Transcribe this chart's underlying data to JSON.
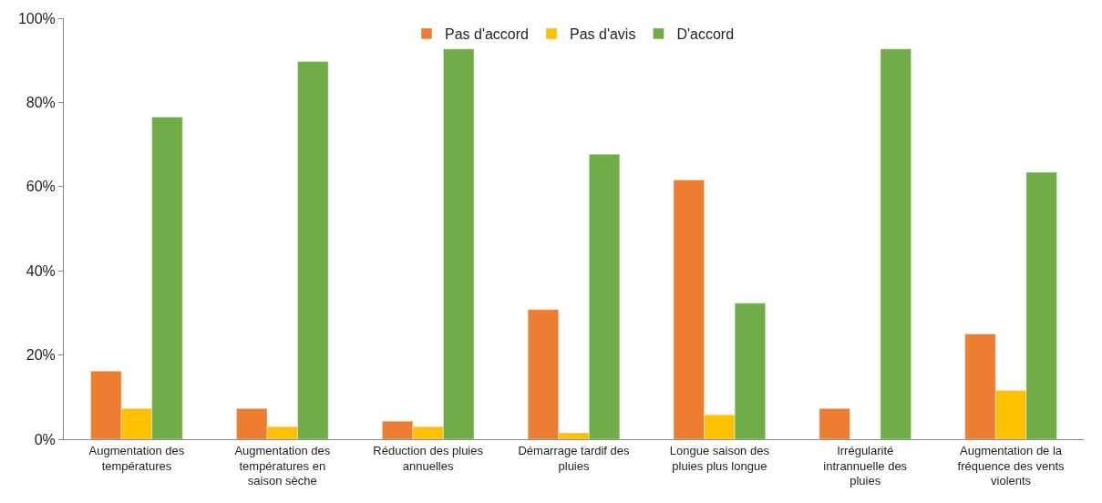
{
  "chart_data": {
    "type": "bar",
    "categories": [
      "Augmentation des températures",
      "Augmentation des températures en saison sèche",
      "Réduction des pluies annuelles",
      "Démarrage tardif des pluies",
      "Longue saison des pluies plus longue",
      "Irrégularité intrannuelle des pluies",
      "Augmentation de la fréquence des vents violents"
    ],
    "series": [
      {
        "name": "Pas d'accord",
        "color": "#ed7d31",
        "values": [
          16.2,
          7.3,
          4.3,
          30.8,
          61.6,
          7.3,
          25.0
        ]
      },
      {
        "name": "Pas d'avis",
        "color": "#ffc000",
        "values": [
          7.3,
          3.0,
          3.0,
          1.5,
          5.8,
          null,
          11.6
        ]
      },
      {
        "name": "D'accord",
        "color": "#70ad47",
        "values": [
          76.5,
          89.7,
          92.7,
          67.7,
          32.3,
          92.7,
          63.4
        ]
      }
    ],
    "ylim": [
      0,
      100
    ],
    "yticks": [
      {
        "value": 0,
        "label": "0%"
      },
      {
        "value": 20,
        "label": "20%"
      },
      {
        "value": 40,
        "label": "40%"
      },
      {
        "value": 60,
        "label": "60%"
      },
      {
        "value": 80,
        "label": "80%"
      },
      {
        "value": 100,
        "label": "100%"
      }
    ],
    "legend": "top"
  }
}
